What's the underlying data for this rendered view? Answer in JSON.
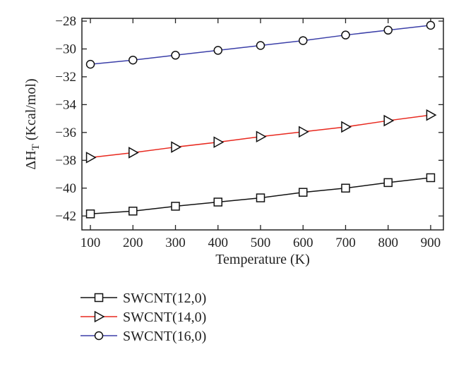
{
  "chart_data": {
    "type": "line",
    "xlabel": "Temperature (K)",
    "ylabel_main": "ΔH",
    "ylabel_sub": "T",
    "ylabel_unit": " (Kcal/mol)",
    "xlim": [
      80,
      930
    ],
    "ylim": [
      -43,
      -27.8
    ],
    "x_ticks": [
      100,
      200,
      300,
      400,
      500,
      600,
      700,
      800,
      900
    ],
    "x_tick_labels": [
      "100",
      "200",
      "300",
      "400",
      "500",
      "600",
      "700",
      "800",
      "900"
    ],
    "y_ticks": [
      -42,
      -40,
      -38,
      -36,
      -34,
      -32,
      -30,
      -28
    ],
    "y_tick_labels": [
      "−42",
      "−40",
      "−38",
      "−36",
      "−34",
      "−32",
      "−30",
      "−28"
    ],
    "grid": false,
    "legend_position": "below-left",
    "x": [
      100,
      200,
      300,
      400,
      500,
      600,
      700,
      800,
      900
    ],
    "series": [
      {
        "name": "SWCNT(12,0)",
        "color": "#111111",
        "marker": "square",
        "values": [
          -41.85,
          -41.65,
          -41.3,
          -41.0,
          -40.7,
          -40.3,
          -40.0,
          -39.6,
          -39.25
        ]
      },
      {
        "name": "SWCNT(14,0)",
        "color": "#e8281e",
        "marker": "triangle-right",
        "values": [
          -37.8,
          -37.45,
          -37.05,
          -36.7,
          -36.3,
          -35.95,
          -35.6,
          -35.15,
          -34.75
        ]
      },
      {
        "name": "SWCNT(16,0)",
        "color": "#3b3fa8",
        "marker": "circle",
        "values": [
          -31.1,
          -30.8,
          -30.45,
          -30.1,
          -29.75,
          -29.4,
          -29.0,
          -28.65,
          -28.3
        ]
      }
    ]
  }
}
